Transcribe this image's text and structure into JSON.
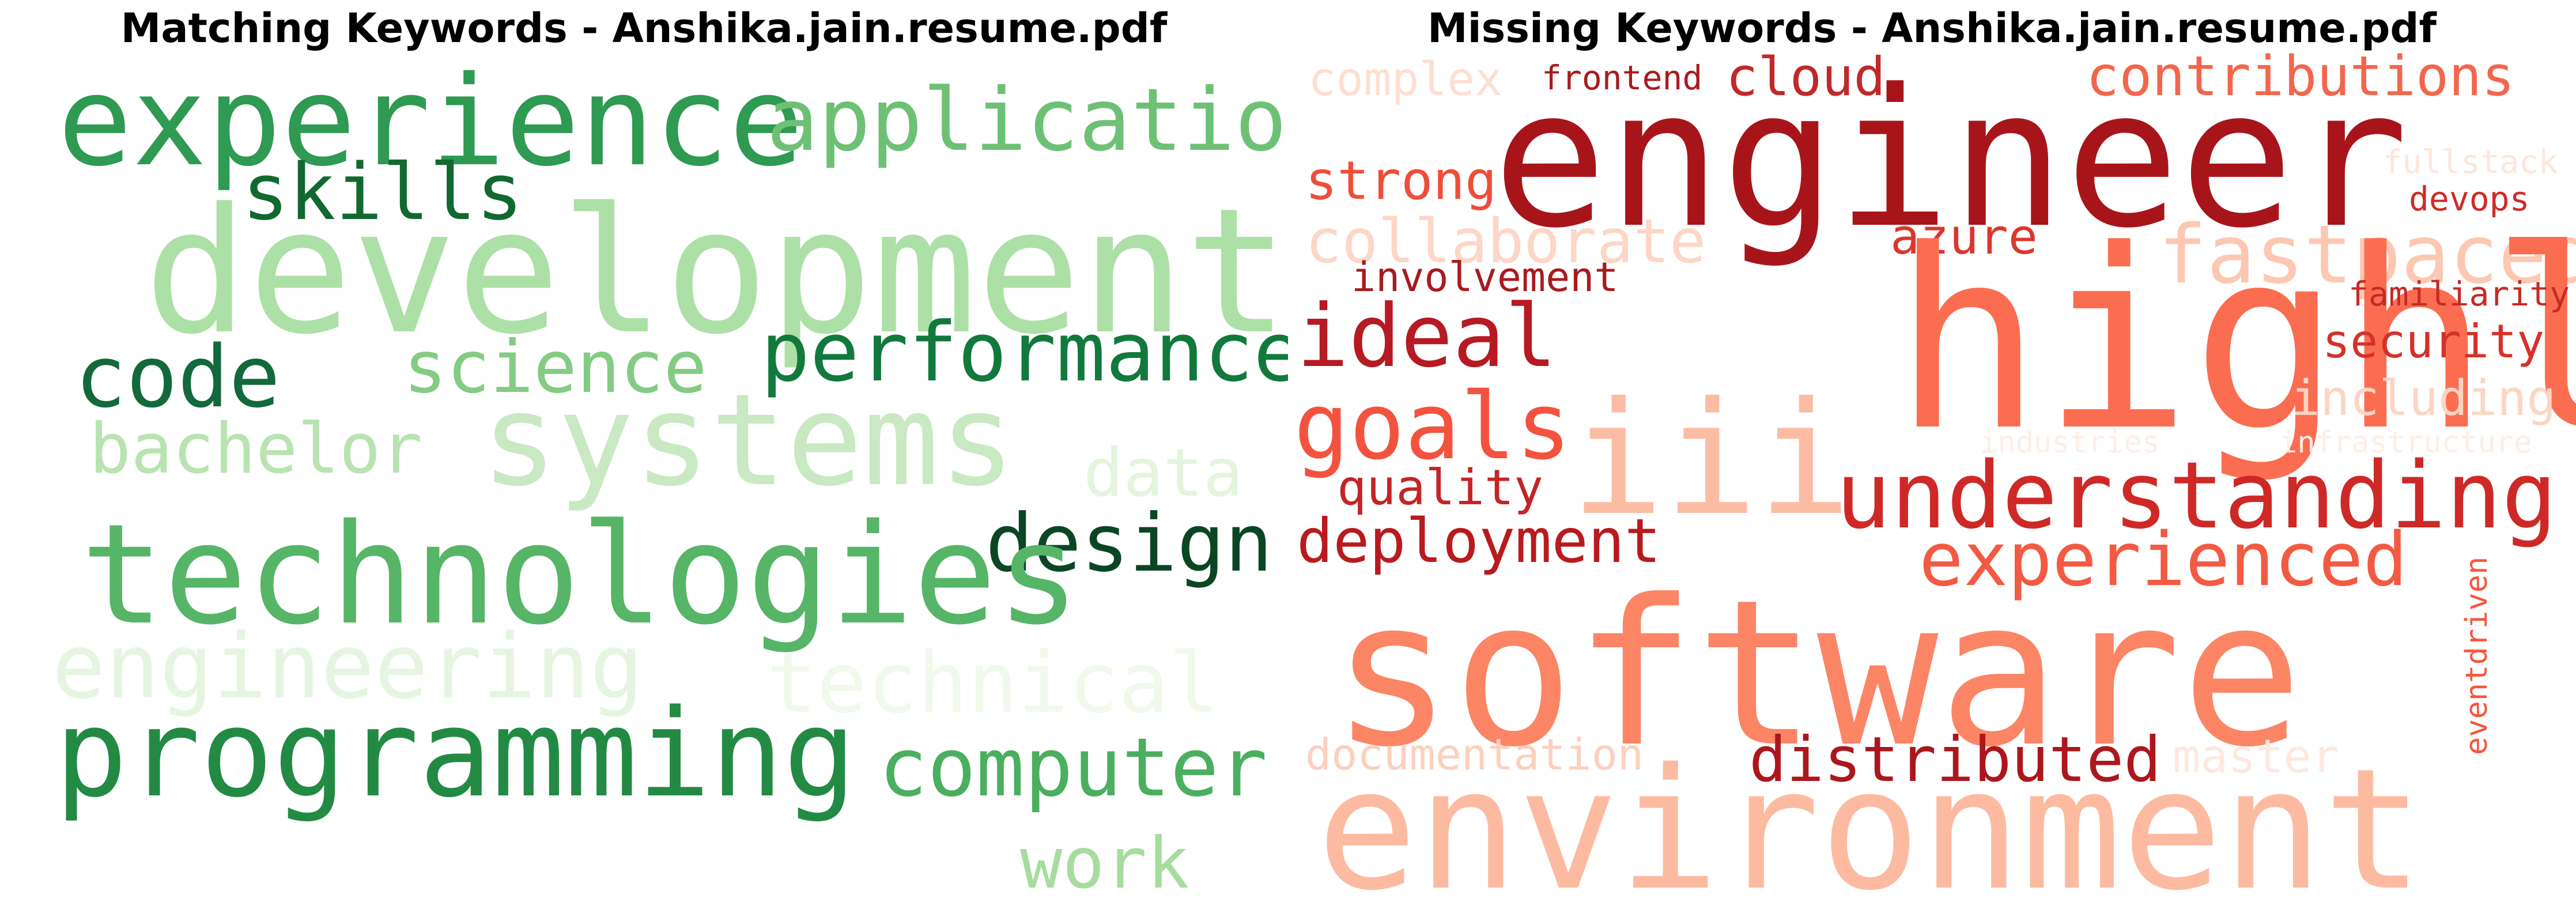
{
  "panels": {
    "matching": {
      "title": "Matching Keywords - Anshika.jain.resume.pdf",
      "colormap": "Greens",
      "words": [
        {
          "text": "experience",
          "color": "#2e9a52"
        },
        {
          "text": "application",
          "color": "#6ec174"
        },
        {
          "text": "skills",
          "color": "#11692f"
        },
        {
          "text": "development",
          "color": "#ade0a6"
        },
        {
          "text": "code",
          "color": "#12693b"
        },
        {
          "text": "science",
          "color": "#84cb83"
        },
        {
          "text": "performance",
          "color": "#12793d"
        },
        {
          "text": "bachelor",
          "color": "#b9e3b1"
        },
        {
          "text": "systems",
          "color": "#c9e9c2"
        },
        {
          "text": "data",
          "color": "#e4f4de"
        },
        {
          "text": "design",
          "color": "#0a4624"
        },
        {
          "text": "technologies",
          "color": "#56b567"
        },
        {
          "text": "engineering",
          "color": "#e6f5e2"
        },
        {
          "text": "technical",
          "color": "#f0f9ec"
        },
        {
          "text": "programming",
          "color": "#238a44"
        },
        {
          "text": "computer",
          "color": "#4aaf5e"
        },
        {
          "text": "work",
          "color": "#a7dc9f"
        }
      ]
    },
    "missing": {
      "title": "Missing Keywords - Anshika.jain.resume.pdf",
      "colormap": "Reds",
      "words": [
        {
          "text": "complex",
          "color": "#fde0d3"
        },
        {
          "text": "frontend",
          "color": "#a91a1e"
        },
        {
          "text": "cloud",
          "color": "#c0282b"
        },
        {
          "text": "contributions",
          "color": "#f3664c"
        },
        {
          "text": "engineer",
          "color": "#a7151b"
        },
        {
          "text": "strong",
          "color": "#ee4e39"
        },
        {
          "text": "fullstack",
          "color": "#fde6dc"
        },
        {
          "text": "devops",
          "color": "#d02b26"
        },
        {
          "text": "collaborate",
          "color": "#fdd6c6"
        },
        {
          "text": "azure",
          "color": "#dd362e"
        },
        {
          "text": "fastpaced",
          "color": "#fcc8b2"
        },
        {
          "text": "involvement",
          "color": "#a71b1f"
        },
        {
          "text": "highly",
          "color": "#fb6d51"
        },
        {
          "text": "familiarity",
          "color": "#c62a26"
        },
        {
          "text": "ideal",
          "color": "#b61a22"
        },
        {
          "text": "security",
          "color": "#d5312a"
        },
        {
          "text": "goals",
          "color": "#f3533e"
        },
        {
          "text": "including",
          "color": "#fcd5c4"
        },
        {
          "text": "industries",
          "color": "#fdeee7"
        },
        {
          "text": "infrastructure",
          "color": "#fdeee6"
        },
        {
          "text": "iii",
          "color": "#fcbca3"
        },
        {
          "text": "quality",
          "color": "#c42426"
        },
        {
          "text": "understanding",
          "color": "#ce2927"
        },
        {
          "text": "deployment",
          "color": "#b91a1e"
        },
        {
          "text": "experienced",
          "color": "#f35a43"
        },
        {
          "text": "eventdriven",
          "color": "#f4573f"
        },
        {
          "text": "software",
          "color": "#fc8565"
        },
        {
          "text": "documentation",
          "color": "#fcd0bd"
        },
        {
          "text": "distributed",
          "color": "#ad161d"
        },
        {
          "text": "master",
          "color": "#fde9e1"
        },
        {
          "text": "environment",
          "color": "#fcbba1"
        }
      ]
    }
  }
}
